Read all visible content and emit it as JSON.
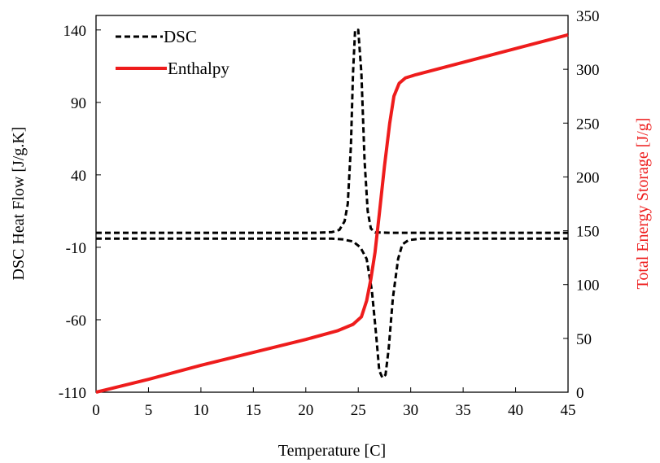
{
  "chart_data": {
    "type": "line",
    "xlabel": "Temperature [C]",
    "ylabel_left": "DSC Heat Flow [J/g.K]",
    "ylabel_right": "Total Energy Storage [J/g]",
    "xlim": [
      0,
      45
    ],
    "ylim_left": [
      -110,
      150
    ],
    "ylim_right": [
      0,
      350
    ],
    "x_ticks": [
      0,
      5,
      10,
      15,
      20,
      25,
      30,
      35,
      40,
      45
    ],
    "y_left_ticks": [
      -110,
      -60,
      -10,
      40,
      90,
      140
    ],
    "y_right_ticks": [
      0,
      50,
      100,
      150,
      200,
      250,
      300,
      350
    ],
    "grid": false,
    "legend_position": "top-left",
    "series": [
      {
        "name": "DSC",
        "axis": "left",
        "style": "dashed",
        "color": "#000000",
        "points": [
          [
            0,
            0
          ],
          [
            18,
            0
          ],
          [
            21,
            0
          ],
          [
            22.5,
            0.5
          ],
          [
            23.2,
            2
          ],
          [
            23.7,
            8
          ],
          [
            24.0,
            20
          ],
          [
            24.3,
            60
          ],
          [
            24.5,
            110
          ],
          [
            24.7,
            140
          ],
          [
            25.0,
            140
          ],
          [
            25.3,
            110
          ],
          [
            25.6,
            50
          ],
          [
            25.9,
            15
          ],
          [
            26.2,
            3
          ],
          [
            26.6,
            0.3
          ],
          [
            28,
            0
          ],
          [
            45,
            0
          ]
        ]
      },
      {
        "name": "DSC",
        "axis": "left",
        "style": "dashed",
        "color": "#000000",
        "points": [
          [
            0,
            -4
          ],
          [
            20,
            -4
          ],
          [
            22.5,
            -4
          ],
          [
            23.5,
            -4.5
          ],
          [
            24.5,
            -6
          ],
          [
            25.2,
            -10
          ],
          [
            25.8,
            -18
          ],
          [
            26.3,
            -40
          ],
          [
            26.7,
            -70
          ],
          [
            27.0,
            -95
          ],
          [
            27.3,
            -100
          ],
          [
            27.6,
            -98
          ],
          [
            27.9,
            -80
          ],
          [
            28.3,
            -45
          ],
          [
            28.8,
            -18
          ],
          [
            29.2,
            -8
          ],
          [
            29.8,
            -5
          ],
          [
            31,
            -4
          ],
          [
            45,
            -4
          ]
        ]
      },
      {
        "name": "Enthalpy",
        "axis": "right",
        "style": "solid",
        "color": "#ee1c1c",
        "points": [
          [
            0,
            0
          ],
          [
            5,
            12
          ],
          [
            10,
            25
          ],
          [
            15,
            37
          ],
          [
            20,
            49
          ],
          [
            23,
            57
          ],
          [
            24.5,
            63
          ],
          [
            25.3,
            70
          ],
          [
            25.8,
            85
          ],
          [
            26.2,
            105
          ],
          [
            26.6,
            130
          ],
          [
            27.0,
            165
          ],
          [
            27.5,
            210
          ],
          [
            28.0,
            250
          ],
          [
            28.4,
            275
          ],
          [
            28.9,
            287
          ],
          [
            29.5,
            292
          ],
          [
            30.5,
            295
          ],
          [
            45,
            332
          ]
        ]
      }
    ],
    "legend": [
      {
        "label": "DSC",
        "style": "dashed",
        "color": "#000000"
      },
      {
        "label": "Enthalpy",
        "style": "solid",
        "color": "#ee1c1c"
      }
    ]
  },
  "colors": {
    "axis": "#000000",
    "right_axis_title": "#ee1c1c",
    "left_axis_title": "#000000"
  }
}
